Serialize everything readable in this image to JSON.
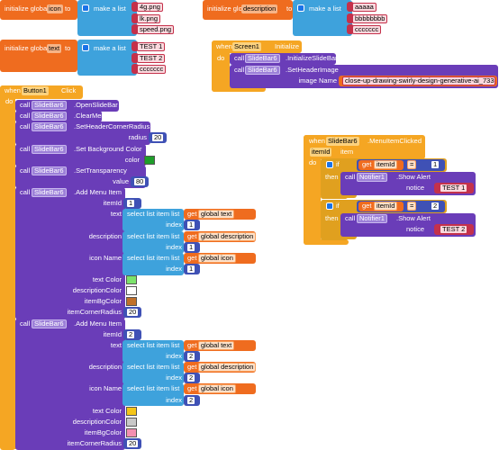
{
  "keywords": {
    "initialize_global": "initialize global",
    "to": "to",
    "make_a_list": "make a list",
    "when": "when",
    "do": "do",
    "call": "call",
    "select": "select list item  list",
    "get": "get",
    "index": "index",
    "if": "if",
    "then": "then"
  },
  "globals": [
    {
      "name": "icon",
      "items": [
        "4g.png",
        "lk.png",
        "speed.png"
      ]
    },
    {
      "name": "description",
      "items": [
        "aaaaa",
        "bbbbbbbb",
        "ccccccc"
      ]
    },
    {
      "name": "text",
      "items": [
        "TEST 1",
        "TEST 2",
        "ccccccc"
      ]
    }
  ],
  "screen1_initialize": {
    "component": "Screen1",
    "event": "Initialize",
    "calls": [
      {
        "component": "SlideBar6",
        "method": ".InitializeSlideBar"
      },
      {
        "component": "SlideBar6",
        "method": ".SetHeaderImage",
        "params": [
          {
            "name": "image Name",
            "text": "close-up-drawing-swirly-design-generative-ai_733..."
          }
        ]
      }
    ]
  },
  "button1_click": {
    "component": "Button1",
    "event": "Click",
    "calls": [
      {
        "component": "SlideBar6",
        "method": ".OpenSlideBar"
      },
      {
        "component": "SlideBar6",
        "method": ".ClearMenu"
      },
      {
        "component": "SlideBar6",
        "method": ".SetHeaderCornerRadius",
        "params": [
          {
            "name": "radius",
            "number": 20
          }
        ]
      },
      {
        "component": "SlideBar6",
        "method": ".Set Background Color",
        "params": [
          {
            "name": "color",
            "color": "#1f9e2a"
          }
        ]
      },
      {
        "component": "SlideBar6",
        "method": ".SetTransparency",
        "params": [
          {
            "name": "value",
            "number": 80
          }
        ]
      },
      {
        "component": "SlideBar6",
        "method": ".Add Menu Item",
        "params": [
          {
            "name": "itemId",
            "number": 1
          },
          {
            "name": "text",
            "get": "global text",
            "index": 1
          },
          {
            "name": "description",
            "get": "global description",
            "index": 1
          },
          {
            "name": "icon Name",
            "get": "global icon",
            "index": 1
          },
          {
            "name": "text Color",
            "color": "#7be36b"
          },
          {
            "name": "descriptionColor",
            "color": "#ffffff"
          },
          {
            "name": "itemBgColor",
            "color": "#c0702a"
          },
          {
            "name": "itemCornerRadius",
            "number": 20
          }
        ]
      },
      {
        "component": "SlideBar6",
        "method": ".Add Menu Item",
        "params": [
          {
            "name": "itemId",
            "number": 2
          },
          {
            "name": "text",
            "get": "global text",
            "index": 2
          },
          {
            "name": "description",
            "get": "global description",
            "index": 2
          },
          {
            "name": "icon Name",
            "get": "global icon",
            "index": 2
          },
          {
            "name": "text Color",
            "color": "#f5c518"
          },
          {
            "name": "descriptionColor",
            "color": "#c8c8c8"
          },
          {
            "name": "itemBgColor",
            "color": "#f48fb1"
          },
          {
            "name": "itemCornerRadius",
            "number": 20
          }
        ]
      }
    ]
  },
  "menu_item_clicked": {
    "component": "SlideBar6",
    "event": ".MenuItemClicked",
    "param": "itemId",
    "param_type": "item",
    "branches": [
      {
        "get": "itemId",
        "op": "=",
        "number": 1,
        "call": {
          "component": "Notifier1",
          "method": ".Show Alert",
          "param": "notice",
          "text": "TEST 1"
        }
      },
      {
        "get": "itemId",
        "op": "=",
        "number": 2,
        "call": {
          "component": "Notifier1",
          "method": ".Show Alert",
          "param": "notice",
          "text": "TEST 2"
        }
      }
    ]
  }
}
